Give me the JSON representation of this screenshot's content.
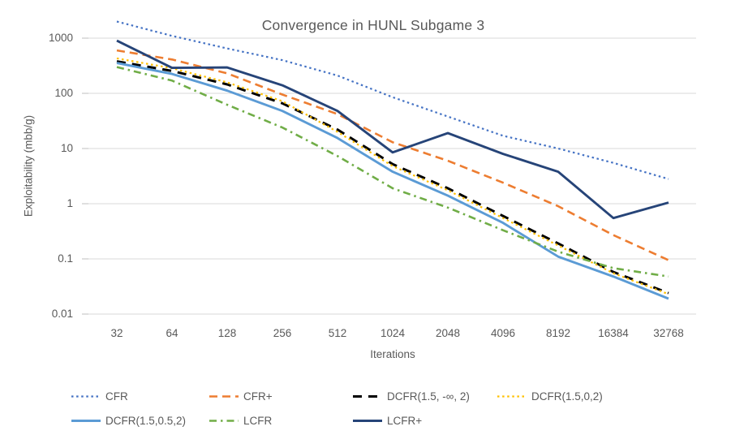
{
  "chart_data": {
    "type": "line",
    "title": "Convergence in HUNL Subgame 3",
    "xlabel": "Iterations",
    "ylabel": "Exploitability (mbb/g)",
    "x_scale": "log2-category",
    "y_scale": "log10",
    "ylim": [
      0.01,
      1000
    ],
    "y_tick_labels": [
      "1000",
      "100",
      "10",
      "1",
      "0.1",
      "0.01"
    ],
    "categories": [
      "32",
      "64",
      "128",
      "256",
      "512",
      "1024",
      "2048",
      "4096",
      "8192",
      "16384",
      "32768"
    ],
    "grid": "horizontal-only",
    "legend_position": "bottom",
    "text_color": "#595959",
    "gridline_color": "#D9D9D9",
    "background_color": "#FFFFFF",
    "series": [
      {
        "name": "CFR",
        "color": "#4472C4",
        "line_style": "dotted",
        "values": [
          2000,
          1100,
          650,
          400,
          210,
          85,
          38,
          17,
          10,
          5.5,
          2.8
        ]
      },
      {
        "name": "CFR+",
        "color": "#ED7D31",
        "line_style": "dashed",
        "values": [
          600,
          410,
          230,
          95,
          42,
          13,
          6,
          2.4,
          0.9,
          0.27,
          0.095
        ]
      },
      {
        "name": "DCFR(1.5, -∞, 2)",
        "color": "#000000",
        "line_style": "long-dash",
        "values": [
          380,
          255,
          145,
          66,
          22,
          5.2,
          1.9,
          0.6,
          0.19,
          0.058,
          0.024
        ]
      },
      {
        "name": "DCFR(1.5,0,2)",
        "color": "#FFC000",
        "line_style": "dotted",
        "values": [
          430,
          285,
          158,
          72,
          20,
          4.8,
          1.75,
          0.55,
          0.175,
          0.055,
          0.023
        ]
      },
      {
        "name": "DCFR(1.5,0.5,2)",
        "color": "#5B9BD5",
        "line_style": "solid",
        "values": [
          355,
          225,
          112,
          48,
          15.5,
          3.8,
          1.4,
          0.45,
          0.11,
          0.048,
          0.019
        ]
      },
      {
        "name": "LCFR",
        "color": "#70AD47",
        "line_style": "dash-dot",
        "values": [
          300,
          170,
          62,
          24,
          7.3,
          1.9,
          0.85,
          0.33,
          0.135,
          0.068,
          0.048
        ]
      },
      {
        "name": "LCFR+",
        "color": "#264478",
        "line_style": "solid",
        "values": [
          900,
          290,
          295,
          140,
          48,
          8.5,
          19,
          8,
          3.8,
          0.55,
          1.05
        ]
      }
    ]
  }
}
